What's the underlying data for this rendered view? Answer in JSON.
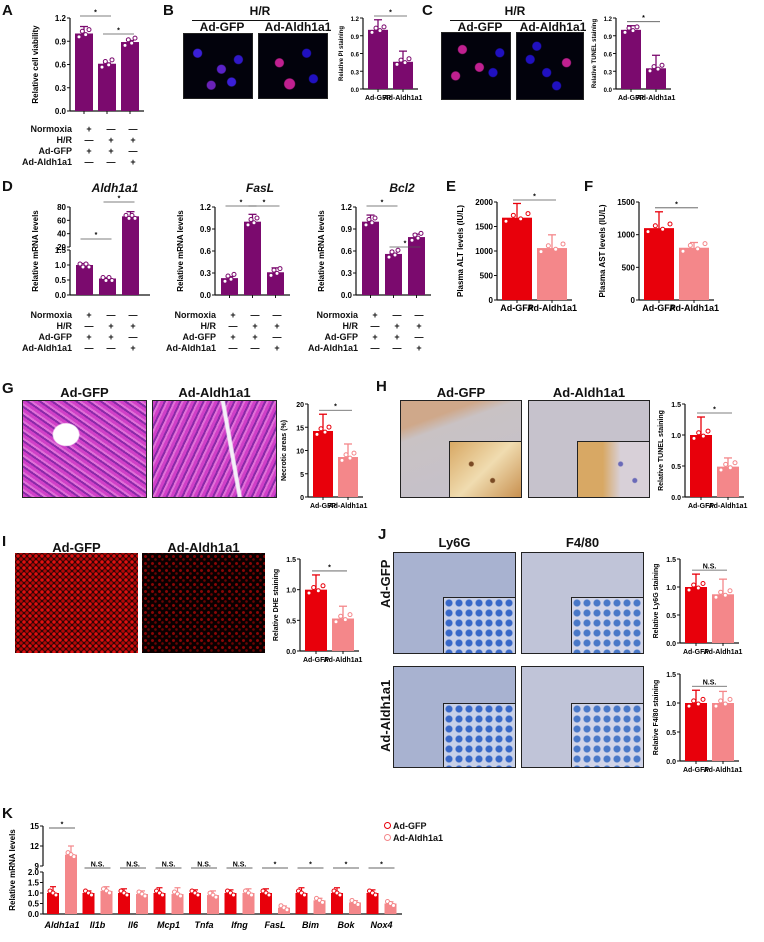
{
  "panels": {
    "A": {
      "label": "A"
    },
    "B": {
      "label": "B",
      "header": "H/R",
      "img_left": "Ad-GFP",
      "img_right": "Ad-Aldh1a1"
    },
    "C": {
      "label": "C",
      "header": "H/R",
      "img_left": "Ad-GFP",
      "img_right": "Ad-Aldh1a1"
    },
    "D": {
      "label": "D",
      "titles": [
        "Aldh1a1",
        "FasL",
        "Bcl2"
      ]
    },
    "E": {
      "label": "E"
    },
    "F": {
      "label": "F"
    },
    "G": {
      "label": "G",
      "img_left": "Ad-GFP",
      "img_right": "Ad-Aldh1a1"
    },
    "H": {
      "label": "H",
      "img_left": "Ad-GFP",
      "img_right": "Ad-Aldh1a1"
    },
    "I": {
      "label": "I",
      "img_left": "Ad-GFP",
      "img_right": "Ad-Aldh1a1"
    },
    "J": {
      "label": "J",
      "col_left": "Ly6G",
      "col_right": "F4/80",
      "row_top": "Ad-GFP",
      "row_bottom": "Ad-Aldh1a1"
    },
    "K": {
      "label": "K"
    }
  },
  "conditions": {
    "rows": [
      "Normoxia",
      "H/R",
      "Ad-GFP",
      "Ad-Aldh1a1"
    ],
    "signs": [
      [
        "+",
        "—",
        "—"
      ],
      [
        "—",
        "+",
        "+"
      ],
      [
        "+",
        "+",
        "—"
      ],
      [
        "—",
        "—",
        "+"
      ]
    ]
  },
  "legend": {
    "items": [
      {
        "label": "Ad-GFP",
        "color": "#e8000b"
      },
      {
        "label": "Ad-Aldh1a1",
        "color": "#f4878a"
      }
    ]
  },
  "colors": {
    "purple": "#7b0a6e",
    "red": "#e8000b",
    "pink": "#f4878a"
  },
  "chart_data": [
    {
      "id": "A",
      "type": "bar",
      "categories": [
        "Normoxia+Ad-GFP",
        "H/R+Ad-GFP",
        "H/R+Ad-Aldh1a1"
      ],
      "values": [
        1.0,
        0.61,
        0.89
      ],
      "errors": [
        0.09,
        0.01,
        0.02
      ],
      "ylabel": "Relative cell viability",
      "ylim": [
        0,
        1.2
      ],
      "yticks": [
        "0.0",
        "0.3",
        "0.6",
        "0.9",
        "1.2"
      ],
      "significance": [
        {
          "pair": [
            0,
            1
          ],
          "mark": "*"
        },
        {
          "pair": [
            1,
            2
          ],
          "mark": "*"
        }
      ]
    },
    {
      "id": "B",
      "type": "bar",
      "categories": [
        "Ad-GFP",
        "Ad-Aldh1a1"
      ],
      "values": [
        1.0,
        0.46
      ],
      "errors": [
        0.17,
        0.18
      ],
      "ylabel": "Relative PI staining",
      "ylim": [
        0,
        1.2
      ],
      "yticks": [
        "0.0",
        "0.3",
        "0.6",
        "0.9",
        "1.2"
      ],
      "significance": [
        {
          "pair": [
            0,
            1
          ],
          "mark": "*"
        }
      ]
    },
    {
      "id": "C",
      "type": "bar",
      "categories": [
        "Ad-GFP",
        "Ad-Aldh1a1"
      ],
      "values": [
        1.0,
        0.35
      ],
      "errors": [
        0.07,
        0.22
      ],
      "ylabel": "Relative TUNEL staining",
      "ylim": [
        0,
        1.2
      ],
      "yticks": [
        "0.0",
        "0.3",
        "0.6",
        "0.9",
        "1.2"
      ],
      "significance": [
        {
          "pair": [
            0,
            1
          ],
          "mark": "*"
        }
      ]
    },
    {
      "id": "D1",
      "type": "bar",
      "title": "Aldh1a1",
      "categories": [
        "Normoxia+Ad-GFP",
        "H/R+Ad-GFP",
        "H/R+Ad-Aldh1a1"
      ],
      "values": [
        1.0,
        0.55,
        66
      ],
      "errors": [
        0.05,
        0.02,
        7
      ],
      "ylabel": "Relative mRNA levels",
      "ylim": [
        0,
        80
      ],
      "yaxis_break": [
        1.5,
        20
      ],
      "yticks": [
        "0.0",
        "0.5",
        "1.0",
        "1.5",
        "20",
        "40",
        "60",
        "80"
      ],
      "significance": [
        {
          "pair": [
            0,
            1
          ],
          "mark": "*"
        },
        {
          "pair": [
            1,
            2
          ],
          "mark": "*"
        }
      ]
    },
    {
      "id": "D2",
      "type": "bar",
      "title": "FasL",
      "categories": [
        "Normoxia+Ad-GFP",
        "H/R+Ad-GFP",
        "H/R+Ad-Aldh1a1"
      ],
      "values": [
        0.23,
        1.0,
        0.31
      ],
      "errors": [
        0.02,
        0.1,
        0.06
      ],
      "ylabel": "Relative mRNA levels",
      "ylim": [
        0,
        1.2
      ],
      "yticks": [
        "0.0",
        "0.3",
        "0.6",
        "0.9",
        "1.2"
      ],
      "significance": [
        {
          "pair": [
            0,
            1
          ],
          "mark": "*"
        },
        {
          "pair": [
            1,
            2
          ],
          "mark": "*"
        }
      ]
    },
    {
      "id": "D3",
      "type": "bar",
      "title": "Bcl2",
      "categories": [
        "Normoxia+Ad-GFP",
        "H/R+Ad-GFP",
        "H/R+Ad-Aldh1a1"
      ],
      "values": [
        1.0,
        0.56,
        0.79
      ],
      "errors": [
        0.09,
        0.01,
        0.04
      ],
      "ylabel": "Relative mRNA levels",
      "ylim": [
        0,
        1.2
      ],
      "yticks": [
        "0.0",
        "0.3",
        "0.6",
        "0.9",
        "1.2"
      ],
      "significance": [
        {
          "pair": [
            0,
            1
          ],
          "mark": "*"
        },
        {
          "pair": [
            1,
            2
          ],
          "mark": "*"
        }
      ]
    },
    {
      "id": "E",
      "type": "bar",
      "categories": [
        "Ad-GFP",
        "Ad-Aldh1a1"
      ],
      "values": [
        1680,
        1060
      ],
      "errors": [
        290,
        270
      ],
      "ylabel": "Plasma ALT levels (IU/L)",
      "ylim": [
        0,
        2000
      ],
      "yticks": [
        "0",
        "500",
        "1000",
        "1500",
        "2000"
      ],
      "significance": [
        {
          "pair": [
            0,
            1
          ],
          "mark": "*"
        }
      ]
    },
    {
      "id": "F",
      "type": "bar",
      "categories": [
        "Ad-GFP",
        "Ad-Aldh1a1"
      ],
      "values": [
        1100,
        800
      ],
      "errors": [
        250,
        80
      ],
      "ylabel": "Plasma AST levels (IU/L)",
      "ylim": [
        0,
        1500
      ],
      "yticks": [
        "0",
        "500",
        "1000",
        "1500"
      ],
      "significance": [
        {
          "pair": [
            0,
            1
          ],
          "mark": "*"
        }
      ]
    },
    {
      "id": "G",
      "type": "bar",
      "categories": [
        "Ad-GFP",
        "Ad-Aldh1a1"
      ],
      "values": [
        14.2,
        8.6
      ],
      "errors": [
        3.6,
        2.8
      ],
      "ylabel": "Necrotic areas (%)",
      "ylim": [
        0,
        20
      ],
      "yticks": [
        "0",
        "5",
        "10",
        "15",
        "20"
      ],
      "significance": [
        {
          "pair": [
            0,
            1
          ],
          "mark": "*"
        }
      ]
    },
    {
      "id": "H",
      "type": "bar",
      "categories": [
        "Ad-GFP",
        "Ad-Aldh1a1"
      ],
      "values": [
        1.0,
        0.49
      ],
      "errors": [
        0.29,
        0.14
      ],
      "ylabel": "Relative TUNEL staining",
      "ylim": [
        0,
        1.5
      ],
      "yticks": [
        "0.0",
        "0.5",
        "1.0",
        "1.5"
      ],
      "significance": [
        {
          "pair": [
            0,
            1
          ],
          "mark": "*"
        }
      ]
    },
    {
      "id": "I",
      "type": "bar",
      "categories": [
        "Ad-GFP",
        "Ad-Aldh1a1"
      ],
      "values": [
        1.0,
        0.53
      ],
      "errors": [
        0.24,
        0.2
      ],
      "ylabel": "Relative DHE staining",
      "ylim": [
        0,
        1.5
      ],
      "yticks": [
        "0.0",
        "0.5",
        "1.0",
        "1.5"
      ],
      "significance": [
        {
          "pair": [
            0,
            1
          ],
          "mark": "*"
        }
      ]
    },
    {
      "id": "J1",
      "type": "bar",
      "categories": [
        "Ad-GFP",
        "Ad-Aldh1a1"
      ],
      "values": [
        1.0,
        0.87
      ],
      "errors": [
        0.23,
        0.27
      ],
      "ylabel": "Relative Ly6G staining",
      "ylim": [
        0,
        1.5
      ],
      "yticks": [
        "0.0",
        "0.5",
        "1.0",
        "1.5"
      ],
      "significance": [
        {
          "pair": [
            0,
            1
          ],
          "mark": "N.S."
        }
      ]
    },
    {
      "id": "J2",
      "type": "bar",
      "categories": [
        "Ad-GFP",
        "Ad-Aldh1a1"
      ],
      "values": [
        1.0,
        1.0
      ],
      "errors": [
        0.22,
        0.2
      ],
      "ylabel": "Relative F4/80 staining",
      "ylim": [
        0,
        1.5
      ],
      "yticks": [
        "0.0",
        "0.5",
        "1.0",
        "1.5"
      ],
      "significance": [
        {
          "pair": [
            0,
            1
          ],
          "mark": "N.S."
        }
      ]
    },
    {
      "id": "K",
      "type": "bar",
      "ylabel": "Relative mRNA levels",
      "categories": [
        "Aldh1a1",
        "Il1b",
        "Il6",
        "Mcp1",
        "Tnfa",
        "Ifng",
        "FasL",
        "Bim",
        "Bok",
        "Nox4"
      ],
      "series": [
        {
          "name": "Ad-GFP",
          "values": [
            1.0,
            1.0,
            1.0,
            1.0,
            1.0,
            1.0,
            1.0,
            1.0,
            1.0,
            1.0
          ],
          "errors": [
            0.3,
            0.1,
            0.2,
            0.25,
            0.15,
            0.15,
            0.2,
            0.25,
            0.25,
            0.15
          ]
        },
        {
          "name": "Ad-Aldh1a1",
          "values": [
            10.7,
            1.1,
            0.95,
            0.95,
            0.9,
            1.0,
            0.3,
            0.65,
            0.55,
            0.5
          ],
          "errors": [
            1.3,
            0.2,
            0.15,
            0.3,
            0.2,
            0.2,
            0.08,
            0.1,
            0.08,
            0.08
          ]
        }
      ],
      "ylim": [
        0,
        15
      ],
      "yaxis_break": [
        2.0,
        9
      ],
      "yticks": [
        "0.0",
        "0.5",
        "1.0",
        "1.5",
        "2.0",
        "9",
        "12",
        "15"
      ],
      "significance": [
        "*",
        "N.S.",
        "N.S.",
        "N.S.",
        "N.S.",
        "N.S.",
        "*",
        "*",
        "*",
        "*"
      ]
    }
  ]
}
